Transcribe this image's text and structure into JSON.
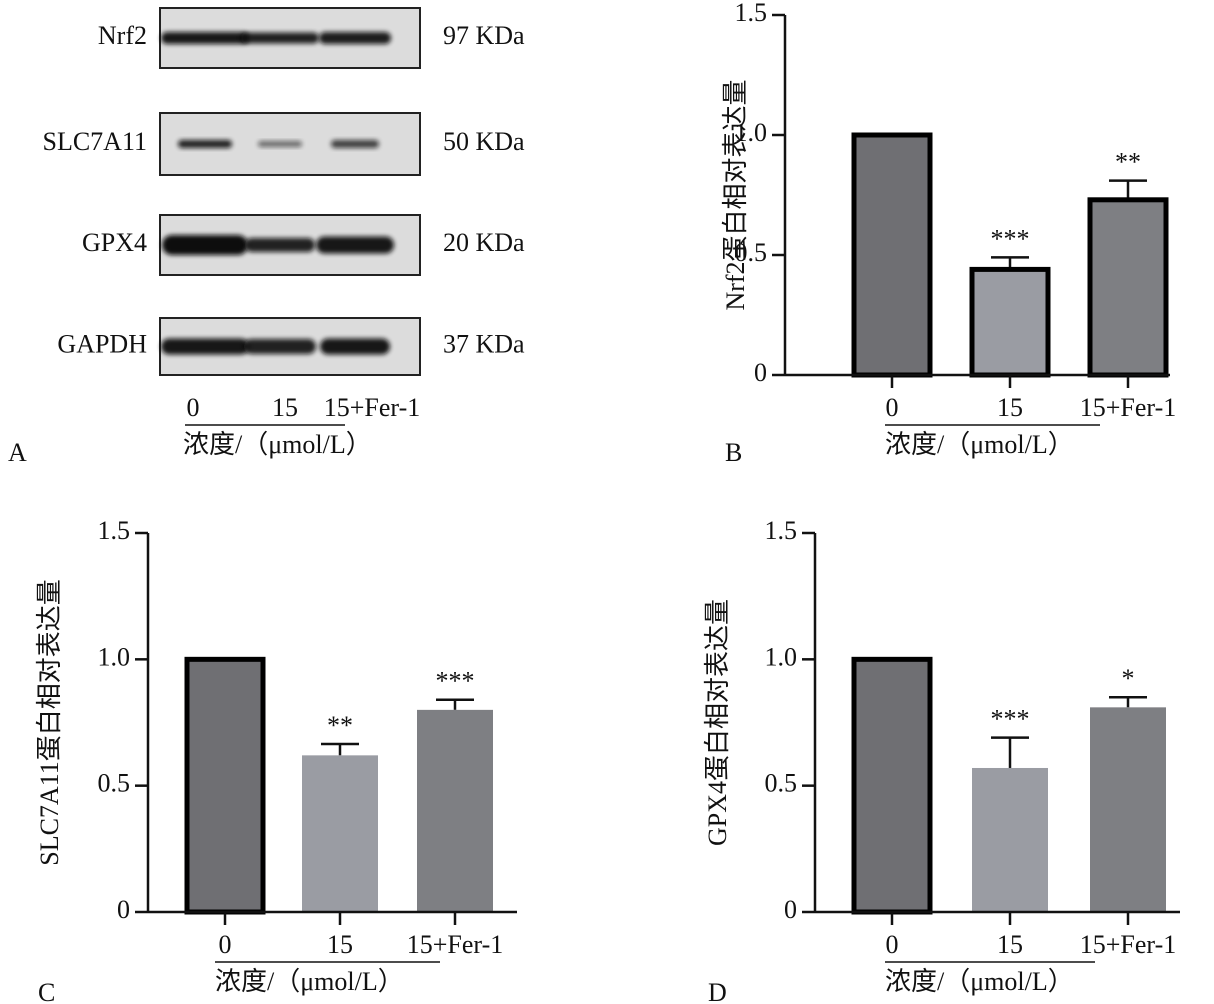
{
  "panel_a": {
    "panel": "A",
    "rows": [
      {
        "label": "Nrf2",
        "size": "97 KDa"
      },
      {
        "label": "SLC7A11",
        "size": "50 KDa"
      },
      {
        "label": "GPX4",
        "size": "20 KDa"
      },
      {
        "label": "GAPDH",
        "size": "37 KDa"
      }
    ],
    "lanes": [
      "0",
      "15",
      "15+Fer-1"
    ],
    "xlabel": "浓度/（μmol/L）"
  },
  "chart_data": [
    {
      "type": "bar",
      "panel": "B",
      "categories": [
        "0",
        "15",
        "15+Fer-1"
      ],
      "values": [
        1.0,
        0.44,
        0.73
      ],
      "errors": [
        null,
        0.05,
        0.08
      ],
      "annotations": [
        null,
        "***",
        "**"
      ],
      "colors": [
        "#6f6f73",
        "#9a9ca3",
        "#7e7f83"
      ],
      "edgecolors": [
        "#000000",
        "#000000",
        "#000000"
      ],
      "ylim": [
        0,
        1.5
      ],
      "yticks": [
        0,
        0.5,
        {
          "value": 1,
          "label": "1.0"
        },
        1.5
      ],
      "xlabel": "浓度/（μmol/L）",
      "ylabel": "Nrf2蛋白相对表达量"
    },
    {
      "type": "bar",
      "panel": "C",
      "categories": [
        "0",
        "15",
        "15+Fer-1"
      ],
      "values": [
        1.0,
        0.62,
        0.8
      ],
      "errors": [
        null,
        0.045,
        0.04
      ],
      "annotations": [
        null,
        "**",
        "***"
      ],
      "colors": [
        "#6f6f73",
        "#9a9ca3",
        "#7e7f83"
      ],
      "edgecolors": [
        "#000000",
        null,
        null
      ],
      "ylim": [
        0,
        1.5
      ],
      "yticks": [
        0,
        0.5,
        {
          "value": 1,
          "label": "1.0"
        },
        1.5
      ],
      "xlabel": "浓度/（μmol/L）",
      "ylabel": "SLC7A11蛋白相对表达量"
    },
    {
      "type": "bar",
      "panel": "D",
      "categories": [
        "0",
        "15",
        "15+Fer-1"
      ],
      "values": [
        1.0,
        0.57,
        0.81
      ],
      "errors": [
        null,
        0.12,
        0.04
      ],
      "annotations": [
        null,
        "***",
        "*"
      ],
      "colors": [
        "#6f6f73",
        "#9a9ca3",
        "#7e7f83"
      ],
      "edgecolors": [
        "#000000",
        null,
        null
      ],
      "ylim": [
        0,
        1.5
      ],
      "yticks": [
        0,
        0.5,
        {
          "value": 1,
          "label": "1.0"
        },
        1.5
      ],
      "xlabel": "浓度/（μmol/L）",
      "ylabel": "GPX4蛋白相对表达量"
    }
  ]
}
